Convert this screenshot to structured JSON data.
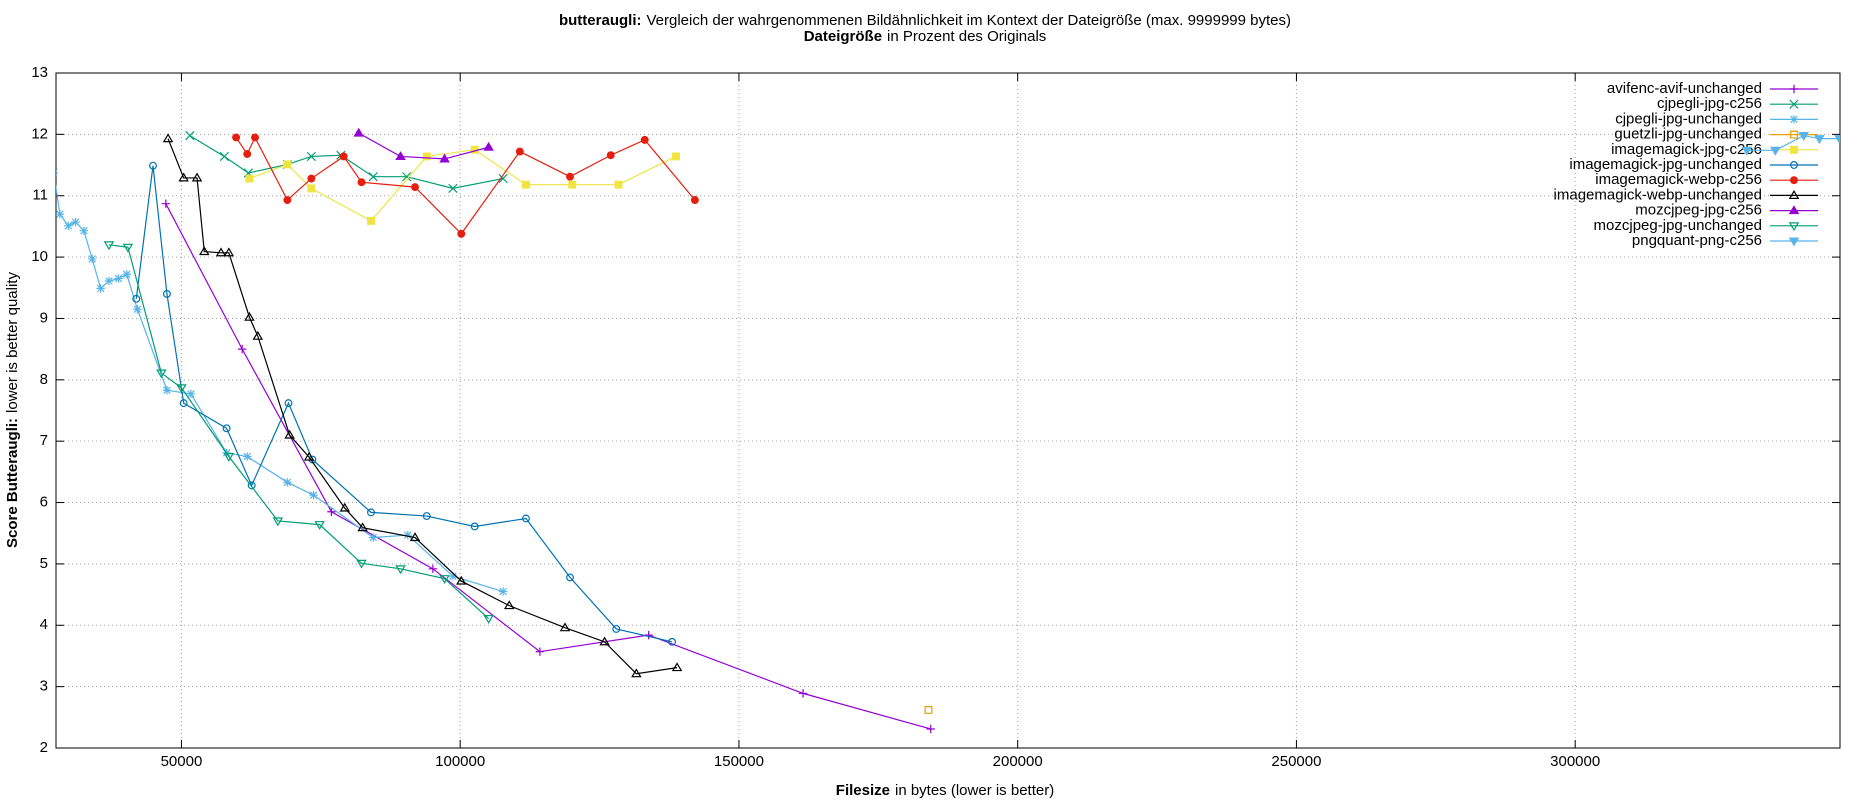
{
  "chart_data": {
    "type": "line",
    "title_bold": "butteraugli:",
    "title_rest": "Vergleich der wahrgenommenen Bildähnlichkeit im Kontext der Dateigröße (max. 9999999 bytes)",
    "subtitle_bold": "Dateigröße",
    "subtitle_rest": "in Prozent des Originals",
    "x_label_bold": "Filesize",
    "x_label_rest": "in bytes (lower is better)",
    "y_label_bold": "Score Butteraugli:",
    "y_label_rest": "lower is better quality",
    "xlim": [
      27500,
      347500
    ],
    "xticks": [
      50000,
      100000,
      150000,
      200000,
      250000,
      300000
    ],
    "ylim": [
      2,
      13
    ],
    "yticks": [
      2,
      3,
      4,
      5,
      6,
      7,
      8,
      9,
      10,
      11,
      12,
      13
    ],
    "grid": true,
    "legend": "top-right",
    "series": [
      {
        "name": "avifenc-avif-unchanged",
        "color": "#9400d3",
        "marker": "plus",
        "x": [
          47200,
          60900,
          76900,
          95100,
          114300,
          133800,
          161500,
          184400
        ],
        "values": [
          10.87,
          8.5,
          5.85,
          4.92,
          3.57,
          3.84,
          2.89,
          2.31
        ]
      },
      {
        "name": "cjpegli-jpg-c256",
        "color": "#009e73",
        "marker": "cross",
        "x": [
          51500,
          57700,
          62000,
          69000,
          73300,
          78600,
          84400,
          90400,
          98700,
          107700
        ],
        "values": [
          11.98,
          11.64,
          11.37,
          11.51,
          11.64,
          11.66,
          11.31,
          11.31,
          11.12,
          11.28
        ]
      },
      {
        "name": "cjpegli-jpg-unchanged",
        "color": "#56b4e9",
        "marker": "star",
        "x": [
          27100,
          28200,
          29700,
          31000,
          32500,
          34000,
          35500,
          37000,
          38700,
          40200,
          42100,
          47400,
          51700,
          58100,
          61800,
          69000,
          73700,
          84400,
          90600,
          98700,
          107700
        ],
        "values": [
          11.37,
          10.7,
          10.51,
          10.57,
          10.43,
          9.97,
          9.49,
          9.61,
          9.65,
          9.72,
          9.15,
          7.83,
          7.77,
          6.81,
          6.75,
          6.33,
          6.12,
          5.43,
          5.47,
          4.8,
          4.55
        ]
      },
      {
        "name": "guetzli-jpg-unchanged",
        "color": "#e69f00",
        "marker": "square",
        "x": [
          184000
        ],
        "values": [
          2.62
        ]
      },
      {
        "name": "imagemagick-jpg-c256",
        "color": "#f0e442",
        "marker": "square-filled",
        "x": [
          62200,
          69000,
          73300,
          84000,
          94000,
          102600,
          111800,
          120100,
          128400,
          138700
        ],
        "values": [
          11.28,
          11.51,
          11.12,
          10.59,
          11.64,
          11.75,
          11.18,
          11.18,
          11.18,
          11.64
        ]
      },
      {
        "name": "imagemagick-jpg-unchanged",
        "color": "#0072b2",
        "marker": "circle",
        "x": [
          41900,
          44900,
          47400,
          50400,
          58100,
          62600,
          69200,
          73500,
          84000,
          94000,
          102600,
          111800,
          119700,
          128000,
          138000
        ],
        "values": [
          9.32,
          11.49,
          9.4,
          7.62,
          7.21,
          6.28,
          7.62,
          6.7,
          5.84,
          5.78,
          5.61,
          5.74,
          4.78,
          3.94,
          3.73
        ]
      },
      {
        "name": "imagemagick-webp-c256",
        "color": "#e51e10",
        "marker": "circle-filled",
        "x": [
          59800,
          61800,
          63200,
          69000,
          73300,
          79100,
          82300,
          91900,
          100200,
          110700,
          119700,
          127000,
          133100,
          142100
        ],
        "values": [
          11.95,
          11.68,
          11.95,
          10.93,
          11.28,
          11.64,
          11.22,
          11.14,
          10.38,
          11.72,
          11.31,
          11.66,
          11.91,
          10.93
        ]
      },
      {
        "name": "imagemagick-webp-unchanged",
        "color": "#000000",
        "marker": "triangle",
        "x": [
          47600,
          50400,
          52800,
          54100,
          57100,
          58500,
          62200,
          63700,
          69400,
          72900,
          79300,
          82500,
          91900,
          100200,
          108800,
          118800,
          125900,
          131600,
          138900
        ],
        "values": [
          11.93,
          11.29,
          11.29,
          10.09,
          10.07,
          10.07,
          9.02,
          8.71,
          7.1,
          6.74,
          5.91,
          5.59,
          5.43,
          4.72,
          4.32,
          3.96,
          3.73,
          3.21,
          3.31
        ]
      },
      {
        "name": "mozcjpeg-jpg-c256",
        "color": "#9400d3",
        "marker": "triangle-filled",
        "x": [
          81800,
          89300,
          97200,
          105100
        ],
        "values": [
          12.02,
          11.64,
          11.6,
          11.79
        ]
      },
      {
        "name": "mozcjpeg-jpg-unchanged",
        "color": "#009e73",
        "marker": "invtriangle",
        "x": [
          37000,
          40400,
          46400,
          50000,
          58500,
          67300,
          74800,
          82300,
          89300,
          97200,
          105100
        ],
        "values": [
          10.2,
          10.16,
          8.11,
          7.87,
          6.75,
          5.7,
          5.64,
          5.01,
          4.92,
          4.76,
          4.11
        ]
      },
      {
        "name": "pngquant-png-c256",
        "color": "#56b4e9",
        "marker": "invtriangle-filled",
        "x": [
          330800,
          335900,
          341000,
          343800,
          347400
        ],
        "values": [
          11.74,
          11.74,
          11.98,
          11.93,
          11.93
        ]
      }
    ]
  }
}
